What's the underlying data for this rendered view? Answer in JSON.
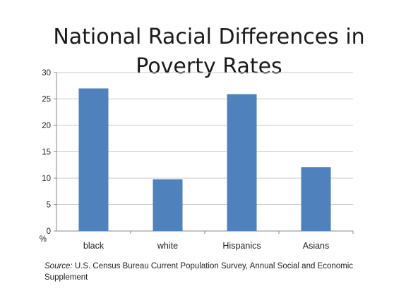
{
  "slide": {
    "title_line1": "National Racial Differences in",
    "title_line2": "Poverty Rates",
    "source_label": "Source:",
    "source_text": "U.S. Census Bureau Current Population Survey, Annual Social and Economic Supplement"
  },
  "chart_data": {
    "type": "bar",
    "categories": [
      "black",
      "white",
      "Hispanics",
      "Asians"
    ],
    "values": [
      27,
      9.8,
      25.9,
      12.1
    ],
    "ylabel": "%",
    "ylim": [
      0,
      30
    ],
    "yticks": [
      0,
      5,
      10,
      15,
      20,
      25,
      30
    ],
    "grid": true,
    "legend": "none",
    "bar_color": "#4f81bd",
    "grid_color": "#c8c8c8"
  }
}
